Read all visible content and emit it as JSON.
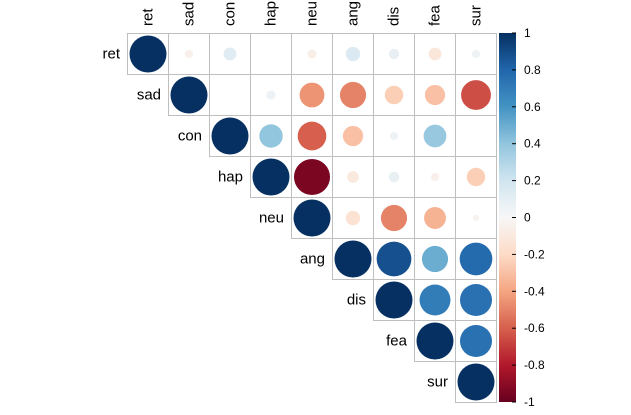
{
  "chart_data": {
    "type": "heatmap",
    "subtype": "correlation-matrix-upper-circles",
    "variables": [
      "ret",
      "sad",
      "con",
      "hap",
      "neu",
      "ang",
      "dis",
      "fea",
      "sur"
    ],
    "matrix": [
      [
        1.0,
        -0.05,
        0.12,
        0.0,
        -0.06,
        0.15,
        0.08,
        -0.12,
        0.05
      ],
      [
        null,
        1.0,
        0.0,
        0.06,
        -0.45,
        -0.5,
        -0.25,
        -0.3,
        -0.65
      ],
      [
        null,
        null,
        1.0,
        0.4,
        -0.6,
        -0.3,
        0.05,
        0.38,
        0.0
      ],
      [
        null,
        null,
        null,
        1.0,
        -0.95,
        -0.1,
        0.08,
        -0.05,
        -0.25
      ],
      [
        null,
        null,
        null,
        null,
        1.0,
        -0.15,
        -0.5,
        -0.35,
        -0.03
      ],
      [
        null,
        null,
        null,
        null,
        null,
        1.0,
        0.88,
        0.5,
        0.78
      ],
      [
        null,
        null,
        null,
        null,
        null,
        null,
        1.0,
        0.7,
        0.75
      ],
      [
        null,
        null,
        null,
        null,
        null,
        null,
        null,
        1.0,
        0.75
      ],
      [
        null,
        null,
        null,
        null,
        null,
        null,
        null,
        null,
        1.0
      ]
    ],
    "colorbar": {
      "min": -1,
      "max": 1,
      "ticks": [
        -1,
        -0.8,
        -0.6,
        -0.4,
        -0.2,
        0,
        0.2,
        0.4,
        0.6,
        0.8,
        1
      ],
      "tick_labels": [
        "-1",
        "-0.8",
        "-0.6",
        "-0.4",
        "-0.2",
        "0",
        "0.2",
        "0.4",
        "0.6",
        "0.8",
        "1"
      ],
      "colors": {
        "neg_end": "#67001f",
        "neg_mid": "#d6604d",
        "neutral": "#f7f7f7",
        "pos_mid": "#4393c3",
        "pos_end": "#053061"
      }
    },
    "grid": true,
    "legend_position": "right"
  }
}
